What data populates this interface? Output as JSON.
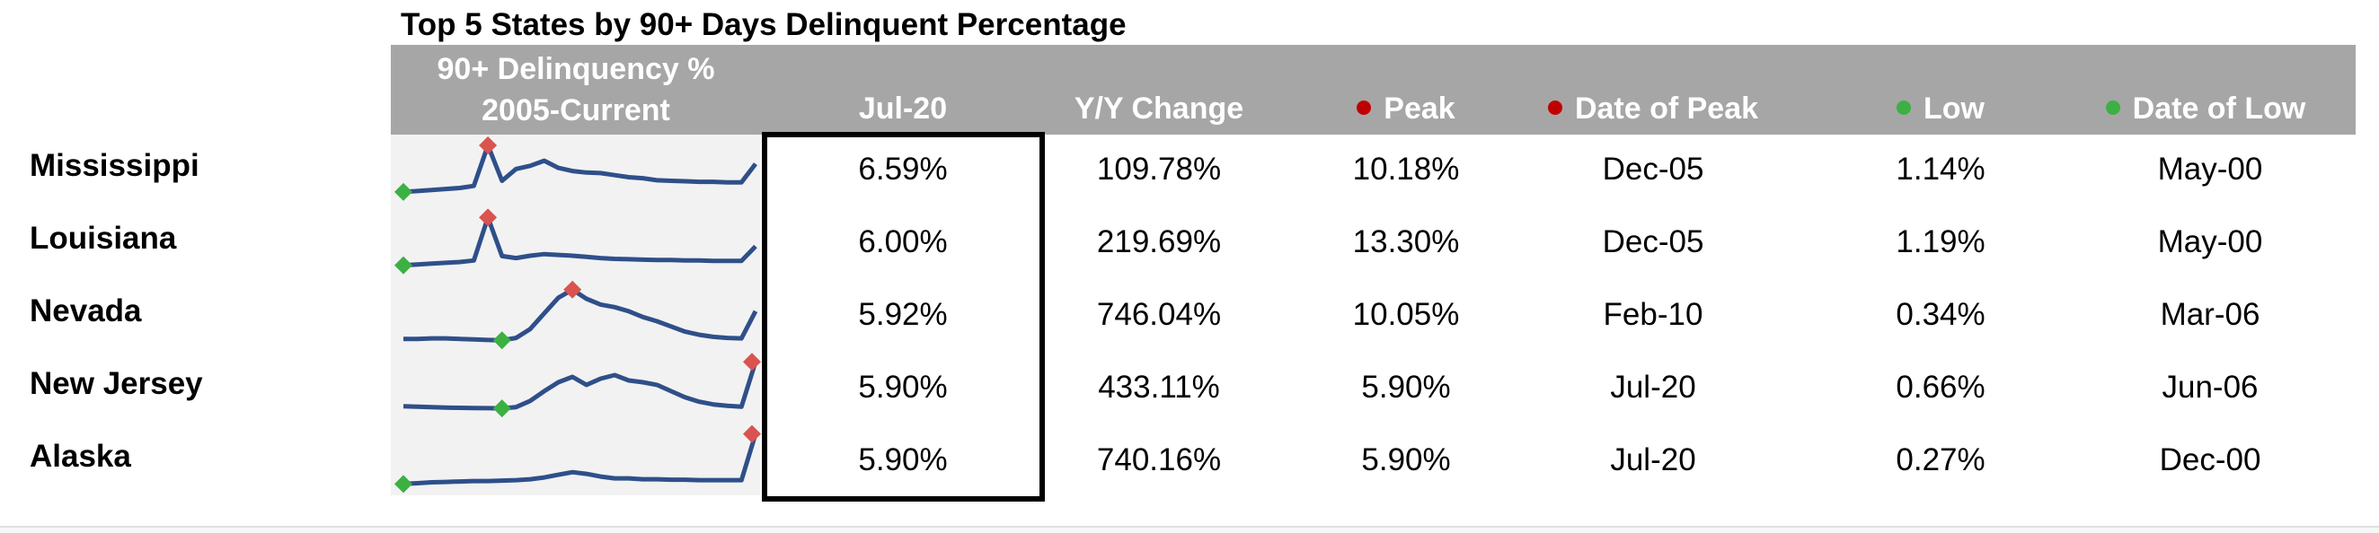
{
  "title": "Top 5 States by 90+ Days Delinquent Percentage",
  "header": {
    "sparkline_line1": "90+ Delinquency %",
    "sparkline_line2": "2005-Current",
    "current": "Jul-20",
    "yy_change": "Y/Y Change",
    "peak": "Peak",
    "date_of_peak": "Date of Peak",
    "low": "Low",
    "date_of_low": "Date of Low"
  },
  "colors": {
    "header_bg": "#a6a6a6",
    "header_text": "#ffffff",
    "peak_marker": "#c00000",
    "peak_diamond": "#d9534f",
    "low_marker": "#3cb043",
    "line": "#2f4f8a",
    "spark_bg": "#f2f2f2"
  },
  "rows": [
    {
      "state": "Mississippi",
      "current": "6.59%",
      "yy_change": "109.78%",
      "peak": "10.18%",
      "date_of_peak": "Dec-05",
      "low": "1.14%",
      "date_of_low": "May-00",
      "sparkline": [
        1.14,
        1.3,
        1.5,
        1.7,
        1.9,
        2.3,
        10.18,
        3.3,
        5.6,
        6.2,
        7.2,
        5.8,
        5.2,
        4.9,
        4.8,
        4.4,
        4.0,
        3.8,
        3.4,
        3.3,
        3.2,
        3.1,
        3.1,
        3.0,
        3.0,
        6.59
      ]
    },
    {
      "state": "Louisiana",
      "current": "6.00%",
      "yy_change": "219.69%",
      "peak": "13.30%",
      "date_of_peak": "Dec-05",
      "low": "1.19%",
      "date_of_low": "May-00",
      "sparkline": [
        1.19,
        1.4,
        1.6,
        1.8,
        2.0,
        2.4,
        13.3,
        3.5,
        3.0,
        3.6,
        4.0,
        3.8,
        3.6,
        3.3,
        3.0,
        2.8,
        2.7,
        2.6,
        2.5,
        2.5,
        2.4,
        2.4,
        2.3,
        2.3,
        2.3,
        6.0
      ]
    },
    {
      "state": "Nevada",
      "current": "5.92%",
      "yy_change": "746.04%",
      "peak": "10.05%",
      "date_of_peak": "Feb-10",
      "low": "0.34%",
      "date_of_low": "Mar-06",
      "sparkline": [
        0.6,
        0.6,
        0.7,
        0.7,
        0.6,
        0.5,
        0.4,
        0.34,
        0.8,
        2.5,
        5.5,
        8.5,
        10.05,
        8.3,
        7.2,
        6.7,
        5.9,
        4.8,
        4.0,
        3.0,
        2.0,
        1.4,
        1.0,
        0.8,
        0.7,
        5.92
      ]
    },
    {
      "state": "New Jersey",
      "current": "5.90%",
      "yy_change": "433.11%",
      "peak": "5.90%",
      "date_of_peak": "Jul-20",
      "low": "0.66%",
      "date_of_low": "Jun-06",
      "sparkline": [
        0.9,
        0.85,
        0.8,
        0.75,
        0.72,
        0.7,
        0.68,
        0.66,
        0.8,
        1.5,
        2.6,
        3.6,
        4.2,
        3.3,
        4.0,
        4.4,
        3.8,
        3.6,
        3.3,
        2.6,
        1.9,
        1.4,
        1.1,
        0.95,
        0.85,
        5.9
      ]
    },
    {
      "state": "Alaska",
      "current": "5.90%",
      "yy_change": "740.16%",
      "peak": "5.90%",
      "date_of_peak": "Jul-20",
      "low": "0.27%",
      "date_of_low": "Dec-00",
      "sparkline": [
        0.27,
        0.35,
        0.45,
        0.5,
        0.55,
        0.6,
        0.6,
        0.65,
        0.7,
        0.8,
        1.0,
        1.3,
        1.6,
        1.4,
        1.1,
        0.9,
        0.9,
        0.8,
        0.8,
        0.75,
        0.75,
        0.7,
        0.7,
        0.7,
        0.7,
        5.9
      ]
    }
  ]
}
